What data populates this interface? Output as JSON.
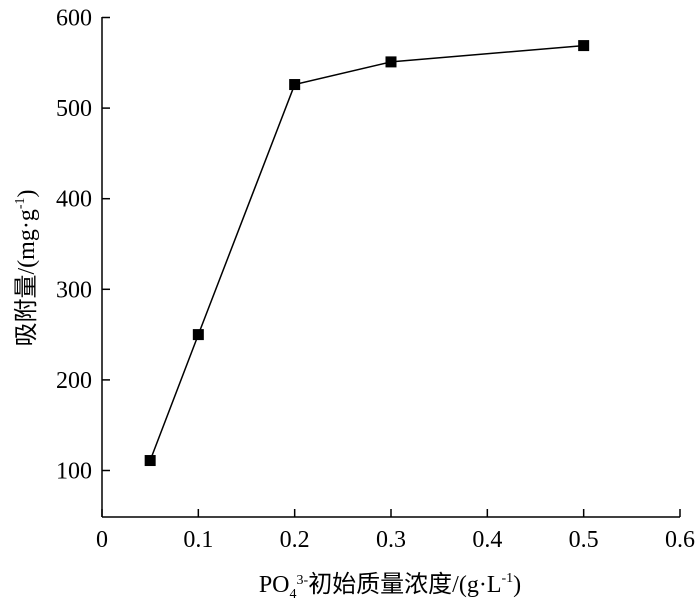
{
  "chart_data": {
    "type": "line",
    "title": "",
    "xlabel": {
      "prefix": "PO",
      "subscript": "4",
      "superscript": "3-",
      "suffix": "初始质量浓度/(g·L",
      "unit_superscript": "-1",
      "close": ")"
    },
    "ylabel": {
      "prefix": "吸附量/(mg·g",
      "superscript": "-1",
      "close": ")"
    },
    "xlim": [
      0,
      0.6
    ],
    "ylim": [
      50,
      600
    ],
    "xticks": [
      "0",
      "0.1",
      "0.2",
      "0.3",
      "0.4",
      "0.5",
      "0.6"
    ],
    "xtick_values": [
      0,
      0.1,
      0.2,
      0.3,
      0.4,
      0.5,
      0.6
    ],
    "yticks": [
      "100",
      "200",
      "300",
      "400",
      "500",
      "600"
    ],
    "ytick_values": [
      100,
      200,
      300,
      400,
      500,
      600
    ],
    "grid": false,
    "series": [
      {
        "marker": "square",
        "color": "#000000",
        "x": [
          0.05,
          0.1,
          0.2,
          0.3,
          0.5
        ],
        "y": [
          111,
          250,
          526,
          551,
          569
        ]
      }
    ]
  }
}
